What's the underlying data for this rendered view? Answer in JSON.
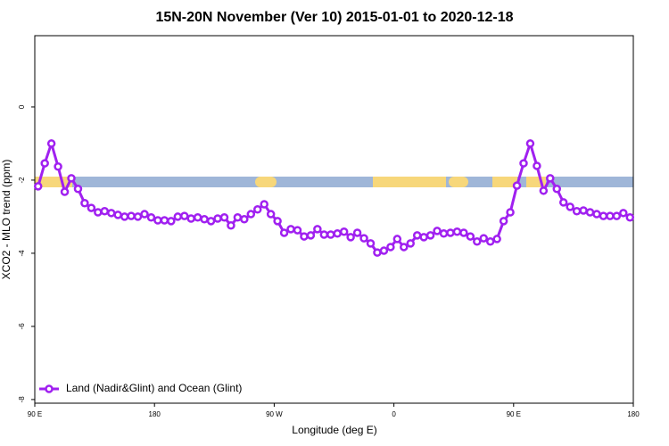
{
  "chart_data": {
    "type": "line",
    "title": "15N-20N November (Ver 10)   2015-01-01 to 2020-12-18",
    "x_label": "Longitude (deg E)",
    "y_label": "XCO2 - MLO trend (ppm)",
    "xlim": [
      90,
      540
    ],
    "ylim": [
      -8.1,
      1.95
    ],
    "xticks": [
      {
        "value": 90,
        "label": "90 E"
      },
      180,
      {
        "value": 270,
        "label": "90 W"
      },
      {
        "value": 360,
        "label": "0"
      },
      {
        "value": 450,
        "label": "90 E"
      },
      {
        "value": 540,
        "label": "180"
      }
    ],
    "yticks": [
      0,
      -2,
      -4,
      -6,
      -8
    ],
    "legend": "lower left",
    "x": [
      92.5,
      97.5,
      102.5,
      107.5,
      112.5,
      117.5,
      122.5,
      127.5,
      132.5,
      137.5,
      142.5,
      147.5,
      152.5,
      157.5,
      162.5,
      167.5,
      172.5,
      177.5,
      182.5,
      187.5,
      192.5,
      197.5,
      202.5,
      207.5,
      212.5,
      217.5,
      222.5,
      227.5,
      232.5,
      237.5,
      242.5,
      247.5,
      252.5,
      257.5,
      262.5,
      267.5,
      272.5,
      277.5,
      282.5,
      287.5,
      292.5,
      297.5,
      302.5,
      307.5,
      312.5,
      317.5,
      322.5,
      327.5,
      332.5,
      337.5,
      342.5,
      347.5,
      352.5,
      357.5,
      362.5,
      367.5,
      372.5,
      377.5,
      382.5,
      387.5,
      392.5,
      397.5,
      402.5,
      407.5,
      412.5,
      417.5,
      422.5,
      427.5,
      432.5,
      437.5,
      442.5,
      447.5,
      452.5,
      457.5,
      462.5,
      467.5,
      472.5,
      477.5,
      482.5,
      487.5,
      492.5,
      497.5,
      502.5,
      507.5,
      512.5,
      517.5,
      522.5,
      527.5,
      532.5,
      537.5
    ],
    "series": [
      {
        "name": "Land (Nadir&Glint) and Ocean (Glint)",
        "color": "#a020f0",
        "values": [
          -2.17,
          -1.54,
          -1.0,
          -1.63,
          -2.32,
          -1.95,
          -2.24,
          -2.63,
          -2.76,
          -2.88,
          -2.85,
          -2.9,
          -2.95,
          -3.0,
          -2.98,
          -3.0,
          -2.93,
          -3.02,
          -3.1,
          -3.1,
          -3.12,
          -3.0,
          -2.98,
          -3.05,
          -3.02,
          -3.07,
          -3.12,
          -3.05,
          -3.02,
          -3.24,
          -3.02,
          -3.07,
          -2.93,
          -2.8,
          -2.66,
          -2.93,
          -3.12,
          -3.44,
          -3.34,
          -3.37,
          -3.54,
          -3.51,
          -3.34,
          -3.49,
          -3.49,
          -3.46,
          -3.41,
          -3.56,
          -3.44,
          -3.59,
          -3.73,
          -3.98,
          -3.93,
          -3.83,
          -3.61,
          -3.83,
          -3.73,
          -3.51,
          -3.56,
          -3.51,
          -3.39,
          -3.46,
          -3.44,
          -3.41,
          -3.44,
          -3.54,
          -3.68,
          -3.59,
          -3.68,
          -3.61,
          -3.12,
          -2.88,
          -2.15,
          -1.54,
          -1.0,
          -1.61,
          -2.29,
          -1.95,
          -2.24,
          -2.61,
          -2.73,
          -2.85,
          -2.83,
          -2.88,
          -2.93,
          -2.98,
          -2.98,
          -2.98,
          -2.9,
          -3.02
        ]
      }
    ]
  }
}
